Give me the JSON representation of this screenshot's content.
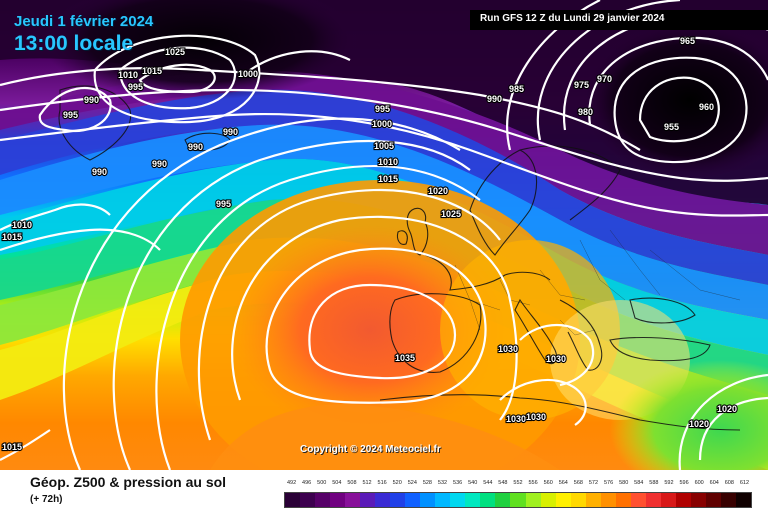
{
  "header": {
    "valid_date": "Jeudi 1 février 2024",
    "local_time": "13:00 locale",
    "run_label": "Run GFS 12 Z du Lundi 29 janvier 2024"
  },
  "copyright": "Copyright © 2024 Meteociel.fr",
  "footer": {
    "title": "Géop. Z500 & pression au sol",
    "subtitle": "(+ 72h)"
  },
  "legend": {
    "values": [
      "492",
      "496",
      "500",
      "504",
      "508",
      "512",
      "516",
      "520",
      "524",
      "528",
      "532",
      "536",
      "540",
      "544",
      "548",
      "552",
      "556",
      "560",
      "564",
      "568",
      "572",
      "576",
      "580",
      "584",
      "588",
      "592",
      "596",
      "600",
      "604",
      "608",
      "612"
    ],
    "colors": [
      "#2a0036",
      "#3d004f",
      "#560068",
      "#700080",
      "#88109a",
      "#5a1ab8",
      "#3a2ad4",
      "#2040e8",
      "#1060ff",
      "#0090ff",
      "#00b8ff",
      "#00d8f0",
      "#00e8c0",
      "#00e080",
      "#20d040",
      "#60e020",
      "#a0f020",
      "#d8f000",
      "#fff000",
      "#ffd800",
      "#ffb000",
      "#ff9000",
      "#ff7000",
      "#ff5030",
      "#f03030",
      "#d81818",
      "#b00000",
      "#880000",
      "#600000",
      "#380000",
      "#100000"
    ]
  },
  "isobar_labels": [
    {
      "text": "1025"
    },
    {
      "text": "1000"
    },
    {
      "text": "1010"
    },
    {
      "text": "1015"
    },
    {
      "text": "995"
    },
    {
      "text": "990"
    },
    {
      "text": "995"
    },
    {
      "text": "990"
    },
    {
      "text": "990"
    },
    {
      "text": "990"
    },
    {
      "text": "990"
    },
    {
      "text": "995"
    },
    {
      "text": "995"
    },
    {
      "text": "1000"
    },
    {
      "text": "1005"
    },
    {
      "text": "1010"
    },
    {
      "text": "1015"
    },
    {
      "text": "1020"
    },
    {
      "text": "1025"
    },
    {
      "text": "990"
    },
    {
      "text": "985"
    },
    {
      "text": "975"
    },
    {
      "text": "970"
    },
    {
      "text": "980"
    },
    {
      "text": "965"
    },
    {
      "text": "960"
    },
    {
      "text": "955"
    },
    {
      "text": "1010"
    },
    {
      "text": "1015"
    },
    {
      "text": "1035"
    },
    {
      "text": "1030"
    },
    {
      "text": "1030"
    },
    {
      "text": "1030"
    },
    {
      "text": "1030"
    },
    {
      "text": "1020"
    },
    {
      "text": "1020"
    },
    {
      "text": "1015"
    }
  ]
}
